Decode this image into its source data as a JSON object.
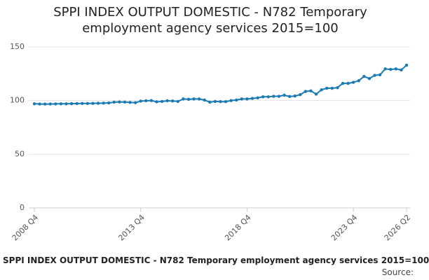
{
  "chart_data": {
    "type": "line",
    "title": "SPPI INDEX OUTPUT DOMESTIC - N782 Temporary employment agency services 2015=100",
    "caption": "SPPI INDEX OUTPUT DOMESTIC - N782 Temporary employment agency services 2015=100",
    "source": "Source:",
    "categories": [
      "2008 Q4",
      null,
      null,
      null,
      null,
      null,
      null,
      null,
      null,
      null,
      null,
      null,
      null,
      null,
      null,
      null,
      null,
      null,
      null,
      null,
      "2013 Q4",
      null,
      null,
      null,
      null,
      null,
      null,
      null,
      null,
      null,
      null,
      null,
      null,
      null,
      null,
      null,
      null,
      null,
      null,
      null,
      "2018 Q4",
      null,
      null,
      null,
      null,
      null,
      null,
      null,
      null,
      null,
      null,
      null,
      null,
      null,
      null,
      null,
      null,
      null,
      null,
      null,
      "2023 Q4",
      null,
      null,
      null,
      null,
      null,
      null,
      null,
      null,
      null,
      "2026 Q2"
    ],
    "series": [
      {
        "name": "SPPI INDEX OUTPUT DOMESTIC - N782 Temporary employment agency services 2015=100",
        "color": "#1a7ab5",
        "values": [
          97,
          96.8,
          96.7,
          96.8,
          96.9,
          97,
          97,
          97.1,
          97.2,
          97.3,
          97.3,
          97.4,
          97.5,
          97.6,
          97.8,
          98.5,
          98.7,
          98.6,
          98.3,
          98,
          99.5,
          99.8,
          100,
          98.8,
          99.2,
          99.8,
          99.6,
          99.2,
          101.5,
          101.2,
          101.5,
          101.5,
          100.5,
          98.5,
          99.2,
          99,
          99,
          100,
          100.5,
          101.5,
          101.5,
          102,
          102.5,
          103.5,
          103.5,
          104,
          104,
          105,
          103.8,
          104.2,
          105.5,
          108.5,
          109,
          106,
          110,
          111.5,
          111.5,
          112,
          116,
          116,
          117,
          118.5,
          122.5,
          120.5,
          123.5,
          124,
          129.5,
          129,
          129.5,
          128.5,
          133
        ]
      }
    ],
    "ylim": [
      0,
      150
    ],
    "yticks": [
      0,
      50,
      100,
      150
    ],
    "grid": true
  }
}
